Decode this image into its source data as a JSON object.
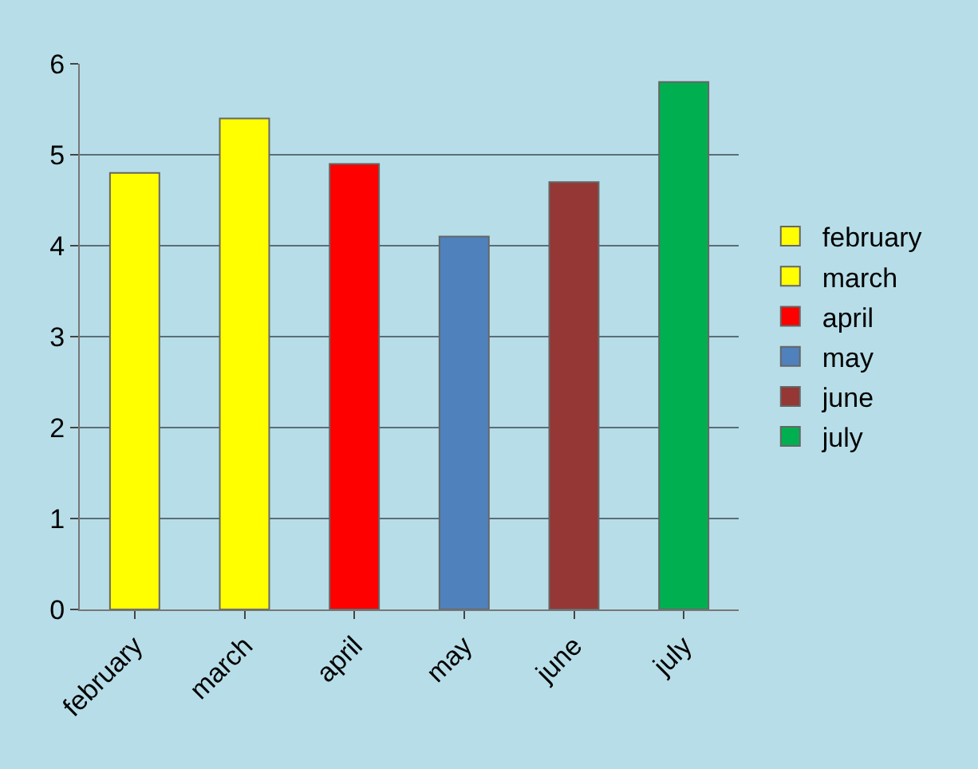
{
  "chart_data": {
    "type": "bar",
    "categories": [
      "february",
      "march",
      "april",
      "may",
      "june",
      "july"
    ],
    "series": [
      {
        "name": "february",
        "color": "#ffff00",
        "values": [
          4.8,
          null,
          null,
          null,
          null,
          null
        ]
      },
      {
        "name": "march",
        "color": "#ffff00",
        "values": [
          null,
          5.4,
          null,
          null,
          null,
          null
        ]
      },
      {
        "name": "april",
        "color": "#ff0000",
        "values": [
          null,
          null,
          4.9,
          null,
          null,
          null
        ]
      },
      {
        "name": "may",
        "color": "#4f81bd",
        "values": [
          null,
          null,
          null,
          4.1,
          null,
          null
        ]
      },
      {
        "name": "june",
        "color": "#953735",
        "values": [
          null,
          null,
          null,
          null,
          4.7,
          null
        ]
      },
      {
        "name": "july",
        "color": "#00b050",
        "values": [
          null,
          null,
          null,
          null,
          null,
          5.8
        ]
      }
    ],
    "ylim": [
      0,
      6
    ],
    "yticks": [
      0,
      1,
      2,
      3,
      4,
      5,
      6
    ],
    "grid": "y",
    "legend": "right"
  }
}
